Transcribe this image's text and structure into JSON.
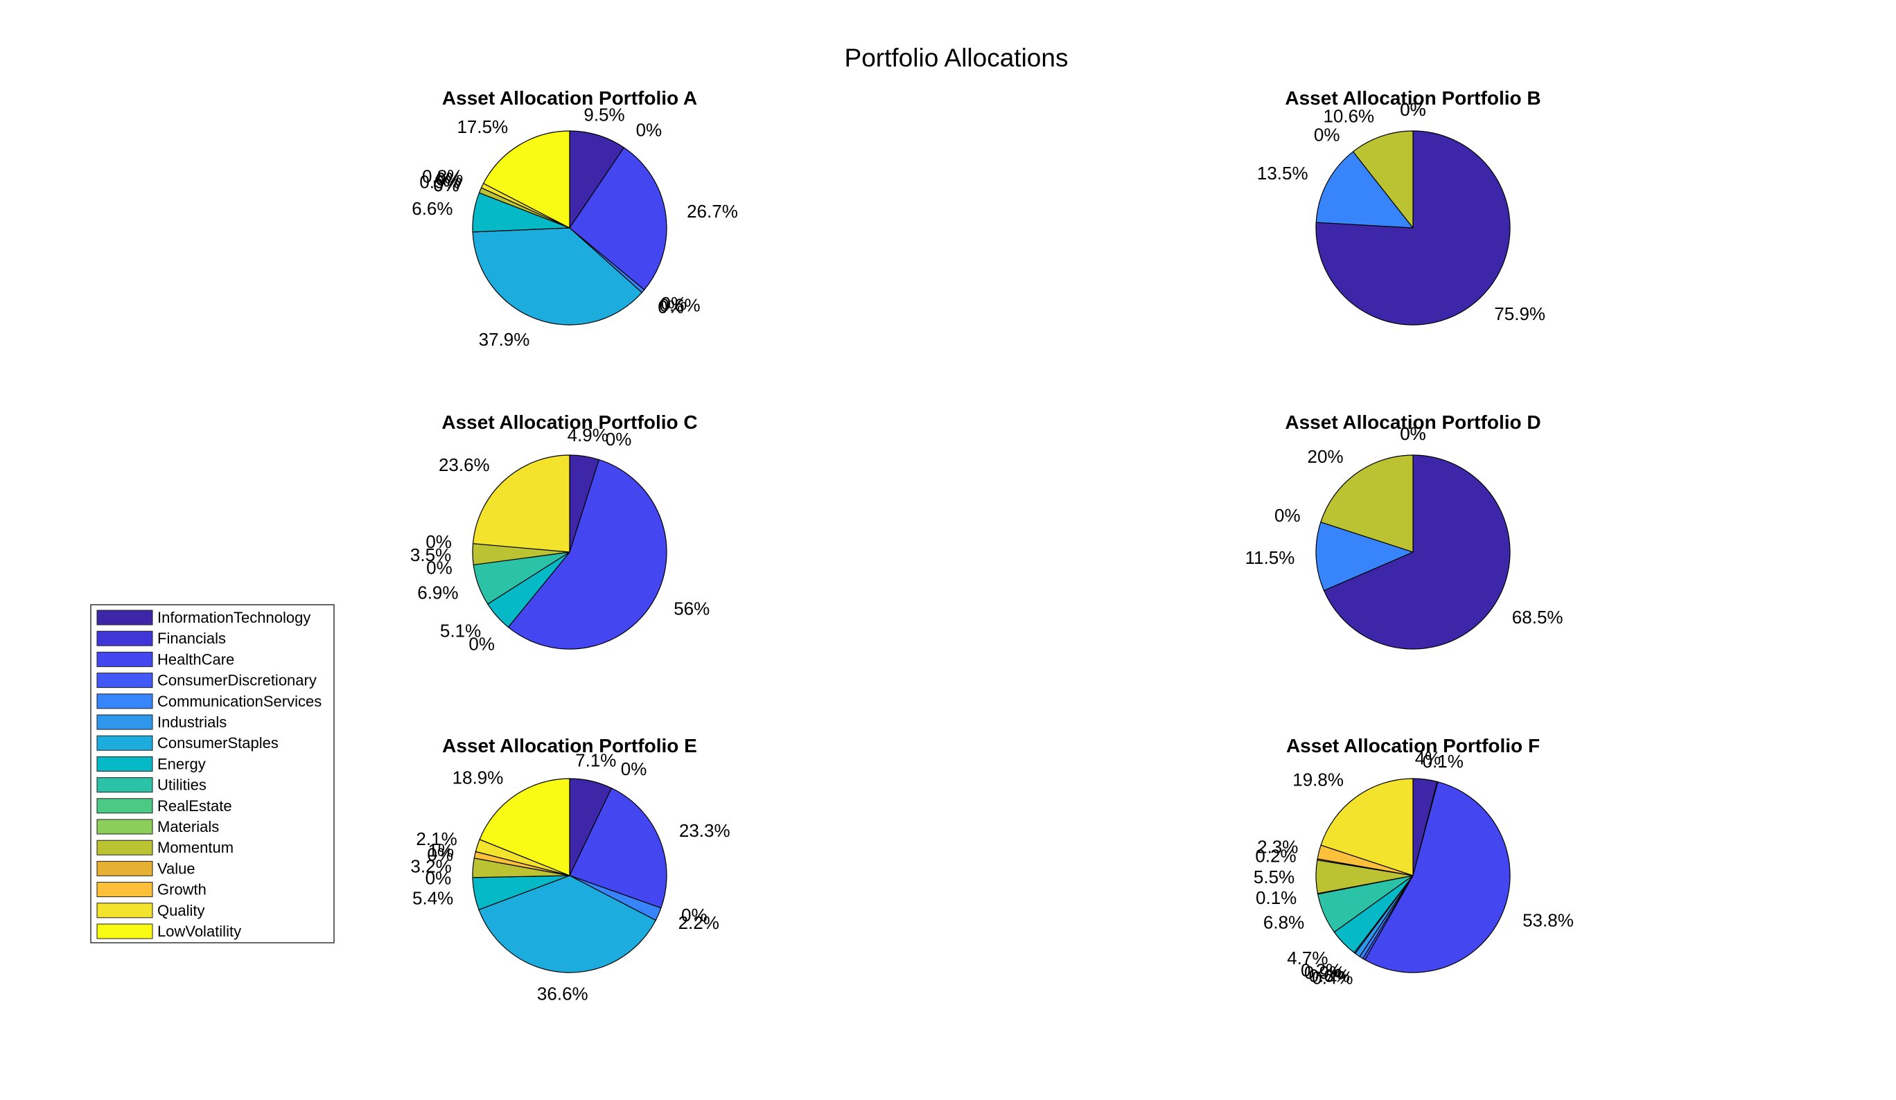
{
  "figure_title": "Portfolio Allocations",
  "legend": {
    "entries": [
      "InformationTechnology",
      "Financials",
      "HealthCare",
      "ConsumerDiscretionary",
      "CommunicationServices",
      "Industrials",
      "ConsumerStaples",
      "Energy",
      "Utilities",
      "RealEstate",
      "Materials",
      "Momentum",
      "Value",
      "Growth",
      "Quality",
      "LowVolatility"
    ],
    "colors": [
      "#3e26a8",
      "#4035d6",
      "#4446ef",
      "#4359f7",
      "#3784fb",
      "#2e97ec",
      "#1cacdd",
      "#06b9c6",
      "#2cc2a8",
      "#4bca86",
      "#8bce59",
      "#bbc332",
      "#e6b032",
      "#fcc03a",
      "#f4e32c",
      "#f9fb15"
    ]
  },
  "chart_data": [
    {
      "type": "pie",
      "title": "Asset Allocation Portfolio A",
      "categories": [
        "InformationTechnology",
        "Financials",
        "HealthCare",
        "ConsumerDiscretionary",
        "CommunicationServices",
        "Industrials",
        "ConsumerStaples",
        "Energy",
        "Utilities",
        "RealEstate",
        "Materials",
        "Momentum",
        "Value",
        "Growth",
        "Quality",
        "LowVolatility"
      ],
      "values": [
        9.5,
        0,
        26.7,
        0,
        0.6,
        0,
        37.9,
        6.6,
        0,
        0,
        0,
        0.9,
        0,
        0,
        0.8,
        17.5
      ],
      "labels": [
        "9.5%",
        "0%",
        "26.7%",
        "0%",
        "0.6%",
        "0%",
        "37.9%",
        "6.6%",
        "0%",
        "0%",
        "0%",
        "0.9%",
        "0%",
        "0%",
        "0.8%",
        "17.5%"
      ]
    },
    {
      "type": "pie",
      "title": "Asset Allocation Portfolio B",
      "categories": [
        "InformationTechnology",
        "CommunicationServices",
        "Industrials",
        "Momentum",
        "Value",
        "Quality"
      ],
      "values": [
        75.9,
        13.5,
        0,
        10.6,
        0,
        0
      ],
      "labels": [
        "75.9%",
        "13.5%",
        "0%",
        "10.6%",
        "0%",
        "0%"
      ]
    },
    {
      "type": "pie",
      "title": "Asset Allocation Portfolio C",
      "categories": [
        "InformationTechnology",
        "Financials",
        "HealthCare",
        "ConsumerStaples",
        "Energy",
        "Utilities",
        "RealEstate",
        "Momentum",
        "Value",
        "Quality"
      ],
      "values": [
        4.9,
        0,
        56,
        0,
        5.1,
        6.9,
        0,
        3.5,
        0,
        23.6
      ],
      "labels": [
        "4.9%",
        "0%",
        "56%",
        "0%",
        "5.1%",
        "6.9%",
        "0%",
        "3.5%",
        "0%",
        "23.6%"
      ]
    },
    {
      "type": "pie",
      "title": "Asset Allocation Portfolio D",
      "categories": [
        "InformationTechnology",
        "CommunicationServices",
        "Industrials",
        "Momentum",
        "Value",
        "Quality"
      ],
      "values": [
        68.5,
        11.5,
        0,
        20,
        0,
        0
      ],
      "labels": [
        "68.5%",
        "11.5%",
        "0%",
        "20%",
        "0%",
        "0%"
      ]
    },
    {
      "type": "pie",
      "title": "Asset Allocation Portfolio E",
      "categories": [
        "InformationTechnology",
        "Financials",
        "HealthCare",
        "ConsumerDiscretionary",
        "CommunicationServices",
        "ConsumerStaples",
        "Energy",
        "Utilities",
        "Momentum",
        "Value",
        "Growth",
        "Quality",
        "LowVolatility"
      ],
      "values": [
        7.1,
        0,
        23.3,
        0,
        2.2,
        36.6,
        5.4,
        0,
        3.2,
        0,
        1.1,
        2.1,
        18.9
      ],
      "labels": [
        "7.1%",
        "0%",
        "23.3%",
        "0%",
        "2.2%",
        "36.6%",
        "5.4%",
        "0%",
        "3.2%",
        "0%",
        "1%",
        "2.1%",
        "18.9%"
      ]
    },
    {
      "type": "pie",
      "title": "Asset Allocation Portfolio F",
      "categories": [
        "InformationTechnology",
        "Financials",
        "HealthCare",
        "ConsumerDiscretionary",
        "CommunicationServices",
        "Industrials",
        "ConsumerStaples",
        "Energy",
        "Utilities",
        "RealEstate",
        "Momentum",
        "Value",
        "Growth",
        "Quality"
      ],
      "values": [
        4.0,
        0.1,
        53.8,
        0.4,
        0.6,
        0.9,
        0.2,
        4.7,
        6.8,
        0.1,
        5.5,
        0.2,
        2.3,
        19.8
      ],
      "labels": [
        "4%",
        "0.1%",
        "53.8%",
        "0.4%",
        "0.6%",
        "0.9%",
        "0.2%",
        "4.7%",
        "6.8%",
        "0.1%",
        "5.5%",
        "0.2%",
        "2.3%",
        "19.8%"
      ]
    }
  ]
}
